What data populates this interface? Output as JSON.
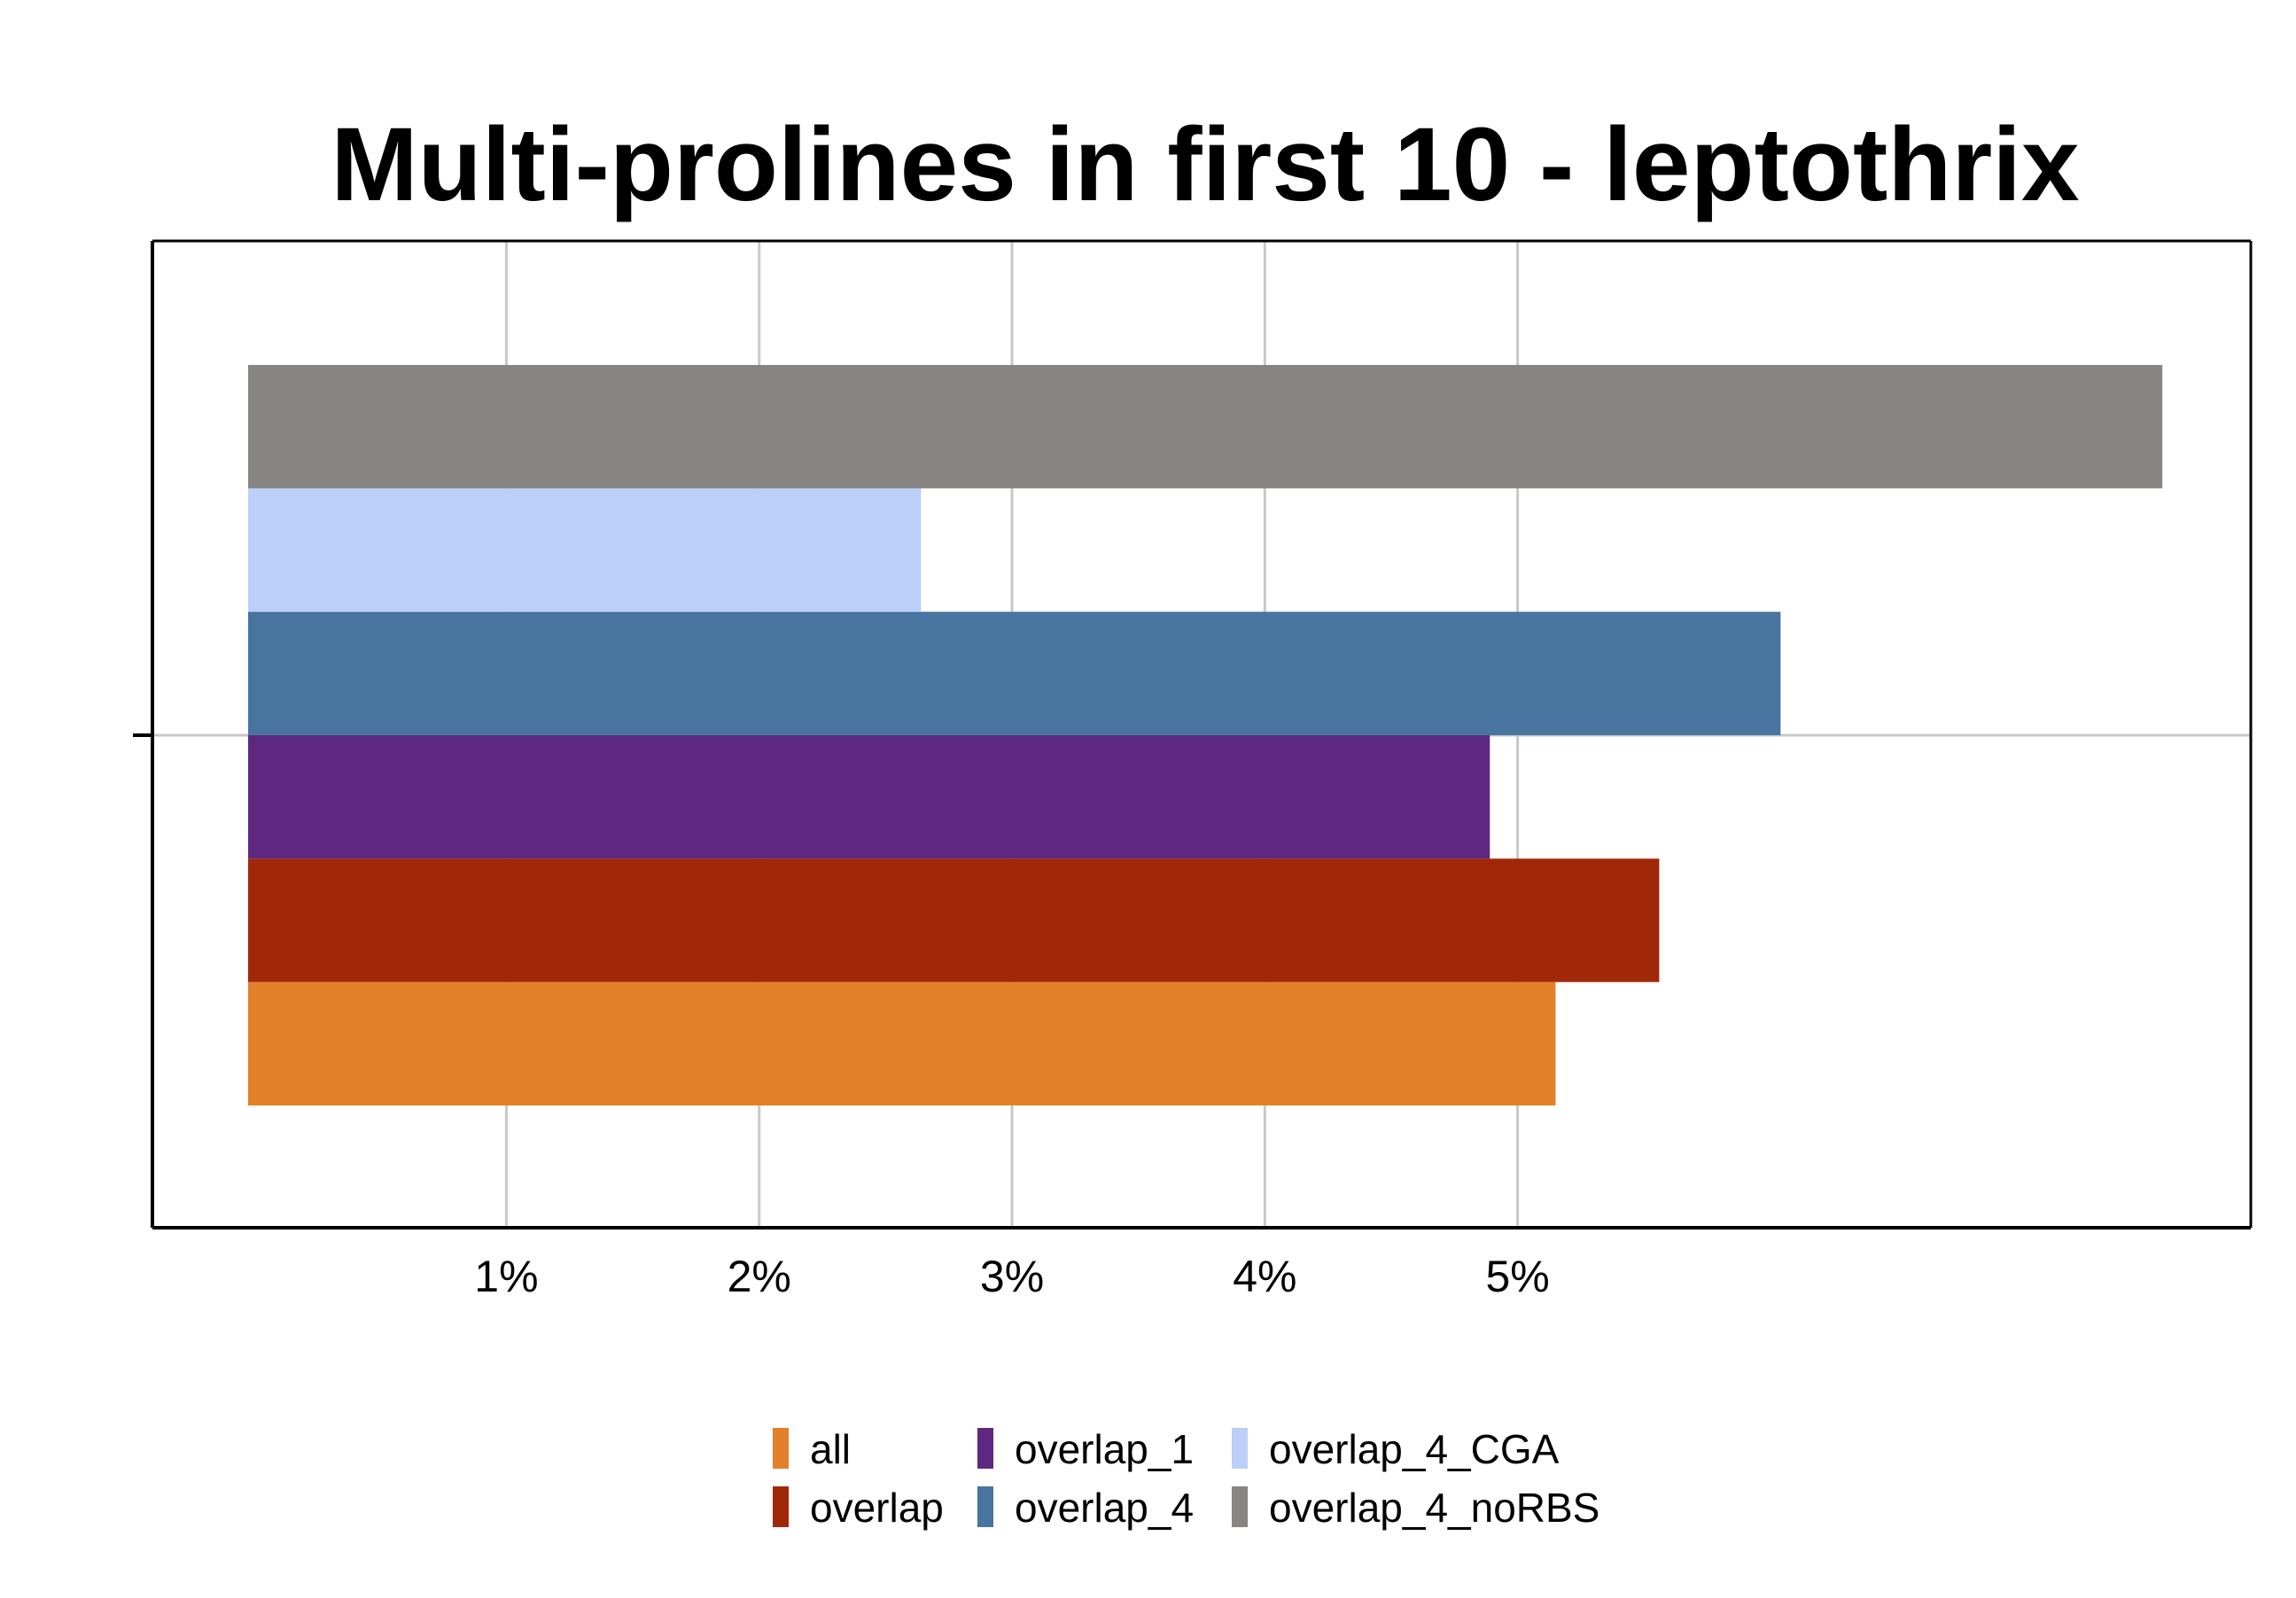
{
  "chart_data": {
    "type": "bar",
    "orientation": "horizontal",
    "title": "Multi-prolines in first 10 - leptothrix",
    "xlabel": "",
    "ylabel": "",
    "xlim": [
      -0.4,
      7.9
    ],
    "x_ticks": [
      1,
      2,
      3,
      4,
      5
    ],
    "x_tick_labels": [
      "1%",
      "2%",
      "3%",
      "4%",
      "5%"
    ],
    "grid": true,
    "legend_position": "bottom",
    "series": [
      {
        "name": "all",
        "value": 5.15,
        "color": "#E3812B"
      },
      {
        "name": "overlap",
        "value": 5.56,
        "color": "#A12709"
      },
      {
        "name": "overlap_1",
        "value": 4.89,
        "color": "#5E2781"
      },
      {
        "name": "overlap_4",
        "value": 6.04,
        "color": "#4874A0"
      },
      {
        "name": "overlap_4_CGA",
        "value": 2.64,
        "color": "#BBCFF8"
      },
      {
        "name": "overlap_4_noRBS",
        "value": 7.55,
        "color": "#868583"
      }
    ]
  }
}
